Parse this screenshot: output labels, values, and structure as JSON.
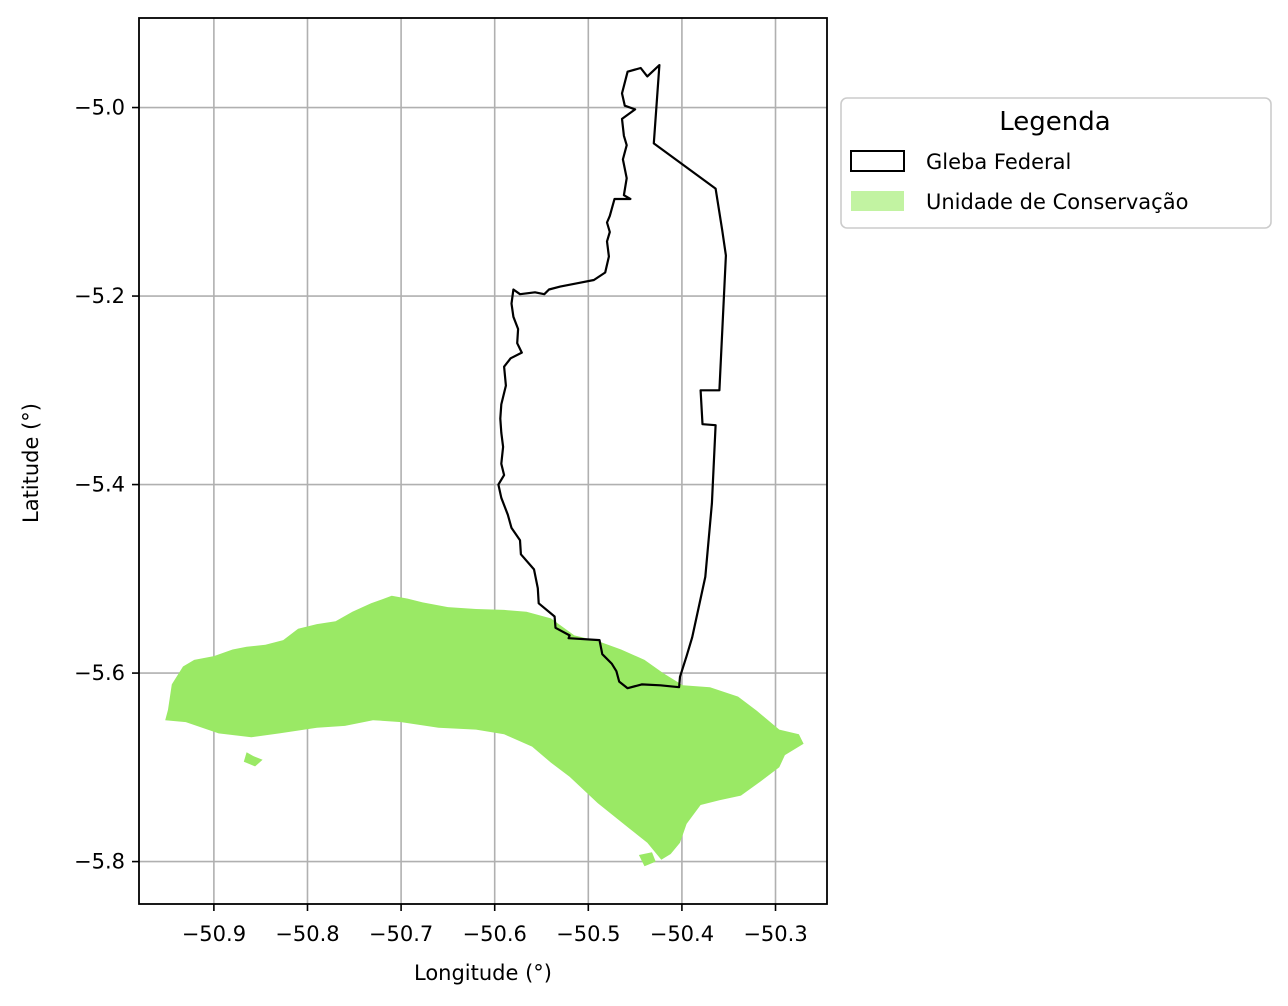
{
  "chart_data": {
    "type": "map",
    "xlabel": "Longitude (°)",
    "ylabel": "Latitude (°)",
    "xlim": [
      -50.98,
      -50.245
    ],
    "ylim": [
      -5.845,
      -4.905
    ],
    "grid": true,
    "xticks": [
      -50.9,
      -50.8,
      -50.7,
      -50.6,
      -50.5,
      -50.4,
      -50.3
    ],
    "xtick_labels": [
      "−50.9",
      "−50.8",
      "−50.7",
      "−50.6",
      "−50.5",
      "−50.4",
      "−50.3"
    ],
    "yticks": [
      -5.0,
      -5.2,
      -5.4,
      -5.6,
      -5.8
    ],
    "ytick_labels": [
      "−5.0",
      "−5.2",
      "−5.4",
      "−5.6",
      "−5.8"
    ],
    "legend": {
      "title": "Legenda",
      "placement": "upper right, outside plot",
      "items": [
        {
          "label": "Gleba Federal",
          "style": "outline",
          "edge_color": "#000000",
          "fill_color": "none"
        },
        {
          "label": "Unidade de Conservação",
          "style": "filled",
          "edge_color": "none",
          "fill_color": "#9ae965"
        }
      ]
    },
    "layers": [
      {
        "name": "Gleba Federal",
        "style": "outline",
        "color": "#000000",
        "polygon": [
          [
            -50.424,
            -4.955
          ],
          [
            -50.437,
            -4.967
          ],
          [
            -50.444,
            -4.958
          ],
          [
            -50.458,
            -4.962
          ],
          [
            -50.464,
            -4.985
          ],
          [
            -50.461,
            -4.998
          ],
          [
            -50.45,
            -5.002
          ],
          [
            -50.464,
            -5.012
          ],
          [
            -50.462,
            -5.03
          ],
          [
            -50.459,
            -5.04
          ],
          [
            -50.463,
            -5.055
          ],
          [
            -50.459,
            -5.075
          ],
          [
            -50.462,
            -5.093
          ],
          [
            -50.455,
            -5.097
          ],
          [
            -50.472,
            -5.097
          ],
          [
            -50.477,
            -5.115
          ],
          [
            -50.48,
            -5.122
          ],
          [
            -50.477,
            -5.132
          ],
          [
            -50.48,
            -5.142
          ],
          [
            -50.478,
            -5.158
          ],
          [
            -50.482,
            -5.175
          ],
          [
            -50.494,
            -5.183
          ],
          [
            -50.51,
            -5.186
          ],
          [
            -50.53,
            -5.19
          ],
          [
            -50.542,
            -5.193
          ],
          [
            -50.547,
            -5.198
          ],
          [
            -50.557,
            -5.196
          ],
          [
            -50.573,
            -5.198
          ],
          [
            -50.58,
            -5.193
          ],
          [
            -50.582,
            -5.208
          ],
          [
            -50.58,
            -5.222
          ],
          [
            -50.575,
            -5.235
          ],
          [
            -50.576,
            -5.25
          ],
          [
            -50.571,
            -5.26
          ],
          [
            -50.583,
            -5.266
          ],
          [
            -50.59,
            -5.275
          ],
          [
            -50.588,
            -5.295
          ],
          [
            -50.593,
            -5.315
          ],
          [
            -50.594,
            -5.33
          ],
          [
            -50.593,
            -5.345
          ],
          [
            -50.591,
            -5.36
          ],
          [
            -50.593,
            -5.378
          ],
          [
            -50.59,
            -5.39
          ],
          [
            -50.596,
            -5.4
          ],
          [
            -50.593,
            -5.414
          ],
          [
            -50.586,
            -5.432
          ],
          [
            -50.582,
            -5.446
          ],
          [
            -50.573,
            -5.459
          ],
          [
            -50.572,
            -5.474
          ],
          [
            -50.558,
            -5.49
          ],
          [
            -50.554,
            -5.51
          ],
          [
            -50.553,
            -5.526
          ],
          [
            -50.536,
            -5.54
          ],
          [
            -50.535,
            -5.552
          ],
          [
            -50.52,
            -5.56
          ],
          [
            -50.521,
            -5.563
          ],
          [
            -50.488,
            -5.565
          ],
          [
            -50.485,
            -5.58
          ],
          [
            -50.475,
            -5.59
          ],
          [
            -50.47,
            -5.598
          ],
          [
            -50.467,
            -5.609
          ],
          [
            -50.458,
            -5.616
          ],
          [
            -50.443,
            -5.612
          ],
          [
            -50.423,
            -5.613
          ],
          [
            -50.403,
            -5.615
          ],
          [
            -50.402,
            -5.604
          ],
          [
            -50.395,
            -5.582
          ],
          [
            -50.389,
            -5.562
          ],
          [
            -50.375,
            -5.498
          ],
          [
            -50.368,
            -5.42
          ],
          [
            -50.364,
            -5.337
          ],
          [
            -50.378,
            -5.336
          ],
          [
            -50.38,
            -5.3
          ],
          [
            -50.36,
            -5.3
          ],
          [
            -50.353,
            -5.157
          ],
          [
            -50.357,
            -5.13
          ],
          [
            -50.364,
            -5.086
          ],
          [
            -50.43,
            -5.038
          ],
          [
            -50.424,
            -4.955
          ]
        ]
      },
      {
        "name": "Unidade de Conservação",
        "style": "filled",
        "color": "#9ae965",
        "polygon": [
          [
            -50.949,
            -5.639
          ],
          [
            -50.945,
            -5.612
          ],
          [
            -50.933,
            -5.593
          ],
          [
            -50.921,
            -5.586
          ],
          [
            -50.9,
            -5.582
          ],
          [
            -50.88,
            -5.575
          ],
          [
            -50.865,
            -5.572
          ],
          [
            -50.845,
            -5.57
          ],
          [
            -50.826,
            -5.565
          ],
          [
            -50.81,
            -5.553
          ],
          [
            -50.79,
            -5.548
          ],
          [
            -50.77,
            -5.545
          ],
          [
            -50.752,
            -5.535
          ],
          [
            -50.732,
            -5.526
          ],
          [
            -50.71,
            -5.518
          ],
          [
            -50.693,
            -5.521
          ],
          [
            -50.677,
            -5.525
          ],
          [
            -50.65,
            -5.53
          ],
          [
            -50.62,
            -5.532
          ],
          [
            -50.59,
            -5.533
          ],
          [
            -50.566,
            -5.535
          ],
          [
            -50.54,
            -5.542
          ],
          [
            -50.515,
            -5.56
          ],
          [
            -50.49,
            -5.566
          ],
          [
            -50.465,
            -5.575
          ],
          [
            -50.44,
            -5.586
          ],
          [
            -50.42,
            -5.6
          ],
          [
            -50.399,
            -5.613
          ],
          [
            -50.37,
            -5.615
          ],
          [
            -50.34,
            -5.625
          ],
          [
            -50.32,
            -5.64
          ],
          [
            -50.296,
            -5.66
          ],
          [
            -50.275,
            -5.665
          ],
          [
            -50.27,
            -5.675
          ],
          [
            -50.29,
            -5.687
          ],
          [
            -50.296,
            -5.7
          ],
          [
            -50.316,
            -5.715
          ],
          [
            -50.337,
            -5.73
          ],
          [
            -50.36,
            -5.735
          ],
          [
            -50.38,
            -5.74
          ],
          [
            -50.395,
            -5.76
          ],
          [
            -50.402,
            -5.78
          ],
          [
            -50.412,
            -5.792
          ],
          [
            -50.422,
            -5.798
          ],
          [
            -50.437,
            -5.78
          ],
          [
            -50.456,
            -5.765
          ],
          [
            -50.49,
            -5.738
          ],
          [
            -50.52,
            -5.71
          ],
          [
            -50.54,
            -5.695
          ],
          [
            -50.56,
            -5.678
          ],
          [
            -50.59,
            -5.665
          ],
          [
            -50.62,
            -5.66
          ],
          [
            -50.66,
            -5.658
          ],
          [
            -50.7,
            -5.652
          ],
          [
            -50.73,
            -5.65
          ],
          [
            -50.76,
            -5.656
          ],
          [
            -50.79,
            -5.658
          ],
          [
            -50.83,
            -5.664
          ],
          [
            -50.86,
            -5.668
          ],
          [
            -50.895,
            -5.664
          ],
          [
            -50.93,
            -5.652
          ],
          [
            -50.952,
            -5.65
          ]
        ],
        "islands": [
          [
            [
              -50.865,
              -5.684
            ],
            [
              -50.858,
              -5.688
            ],
            [
              -50.848,
              -5.692
            ],
            [
              -50.856,
              -5.699
            ],
            [
              -50.868,
              -5.694
            ]
          ],
          [
            [
              -50.446,
              -5.793
            ],
            [
              -50.432,
              -5.79
            ],
            [
              -50.428,
              -5.8
            ],
            [
              -50.44,
              -5.805
            ]
          ]
        ]
      }
    ]
  }
}
